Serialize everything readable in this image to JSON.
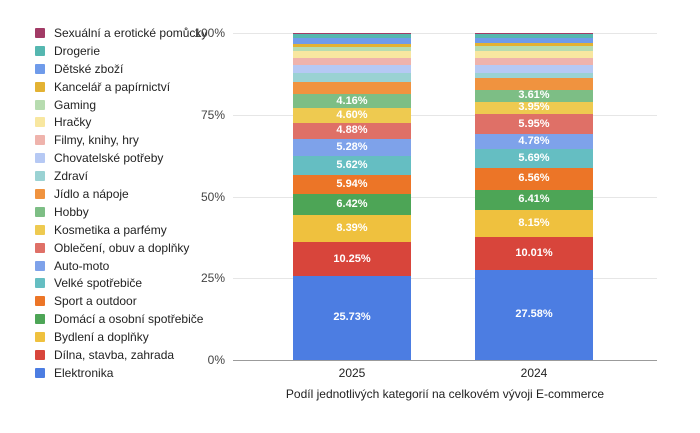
{
  "chart_data": {
    "type": "bar",
    "variant": "stacked-100",
    "title": "Podíl jednotlivých kategorií na celkovém vývoji E-commerce",
    "categories": [
      "2025",
      "2024"
    ],
    "y_tick_labels": [
      "100%",
      "75%",
      "50%",
      "25%",
      "0%"
    ],
    "y_tick_values": [
      100,
      75,
      50,
      25,
      0
    ],
    "ylim": [
      0,
      100
    ],
    "grid": true,
    "legend_position": "left",
    "axis_colors": {
      "gridline": "#e6e6e6",
      "baseline": "#9b9b9b",
      "tick_text": "#444444"
    },
    "series_bottom_to_top": [
      {
        "name": "Elektronika",
        "color": "#4c7de2",
        "values": [
          25.73,
          27.58
        ],
        "labels": [
          "25.73%",
          "27.58%"
        ]
      },
      {
        "name": "Dílna, stavba, zahrada",
        "color": "#d8453b",
        "values": [
          10.25,
          10.01
        ],
        "labels": [
          "10.25%",
          "10.01%"
        ]
      },
      {
        "name": "Bydlení a doplňky",
        "color": "#efc13e",
        "values": [
          8.39,
          8.15
        ],
        "labels": [
          "8.39%",
          "8.15%"
        ]
      },
      {
        "name": "Domácí a osobní spotřebiče",
        "color": "#4da556",
        "values": [
          6.42,
          6.41
        ],
        "labels": [
          "6.42%",
          "6.41%"
        ]
      },
      {
        "name": "Sport a outdoor",
        "color": "#ec7527",
        "values": [
          5.94,
          6.56
        ],
        "labels": [
          "5.94%",
          "6.56%"
        ]
      },
      {
        "name": "Velké spotřebiče",
        "color": "#65bec2",
        "values": [
          5.62,
          5.69
        ],
        "labels": [
          "5.62%",
          "5.69%"
        ]
      },
      {
        "name": "Auto-moto",
        "color": "#7ea2ea",
        "values": [
          5.28,
          4.78
        ],
        "labels": [
          "5.28%",
          "4.78%"
        ]
      },
      {
        "name": "Oblečení, obuv a doplňky",
        "color": "#df7067",
        "values": [
          4.88,
          5.95
        ],
        "labels": [
          "4.88%",
          "5.95%"
        ]
      },
      {
        "name": "Kosmetika a parfémy",
        "color": "#eeca50",
        "values": [
          4.6,
          3.95
        ],
        "labels": [
          "4.60%",
          "3.95%"
        ]
      },
      {
        "name": "Hobby",
        "color": "#7dbe85",
        "values": [
          4.16,
          3.61
        ],
        "labels": [
          "4.16%",
          "3.61%"
        ]
      },
      {
        "name": "Jídlo a nápoje",
        "color": "#f0933f",
        "values": [
          3.63,
          3.71
        ],
        "labels": [
          null,
          null
        ]
      },
      {
        "name": "Zdraví",
        "color": "#9ad2d3",
        "values": [
          2.75,
          1.3
        ],
        "labels": [
          null,
          null
        ]
      },
      {
        "name": "Chovatelské potřeby",
        "color": "#b6c9f4",
        "values": [
          2.5,
          2.7
        ],
        "labels": [
          null,
          null
        ]
      },
      {
        "name": "Filmy, knihy, hry",
        "color": "#efb3ac",
        "values": [
          2.15,
          2.1
        ],
        "labels": [
          null,
          null
        ]
      },
      {
        "name": "Hračky",
        "color": "#f8e7a0",
        "values": [
          2.1,
          2.1
        ],
        "labels": [
          null,
          null
        ]
      },
      {
        "name": "Gaming",
        "color": "#b7dcb0",
        "values": [
          1.35,
          1.5
        ],
        "labels": [
          null,
          null
        ]
      },
      {
        "name": "Kancelář a papírnictví",
        "color": "#e3b233",
        "values": [
          0.9,
          0.75
        ],
        "labels": [
          null,
          null
        ]
      },
      {
        "name": "Dětské zboží",
        "color": "#6f9bea",
        "values": [
          1.8,
          1.65
        ],
        "labels": [
          null,
          null
        ]
      },
      {
        "name": "Drogerie",
        "color": "#55b7b0",
        "values": [
          1.25,
          1.2
        ],
        "labels": [
          null,
          null
        ]
      },
      {
        "name": "Sexuální a erotické pomůcky",
        "color": "#a23b66",
        "values": [
          0.3,
          0.3
        ],
        "labels": [
          null,
          null
        ]
      }
    ]
  }
}
